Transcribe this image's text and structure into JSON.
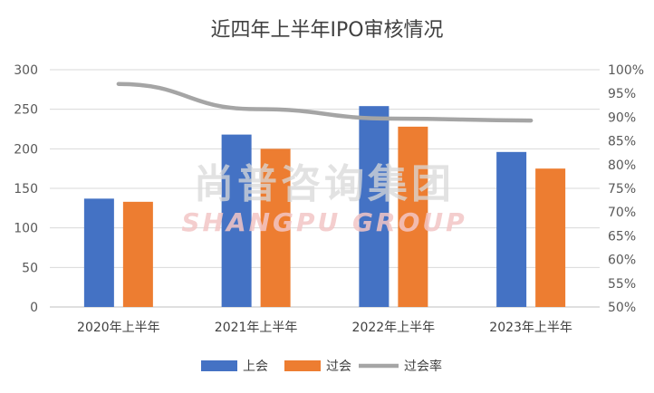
{
  "watermark": {
    "cn": "尚普咨询集团",
    "en": "SHANGPU GROUP"
  },
  "chart_data": {
    "type": "bar",
    "title": "近四年上半年IPO审核情况",
    "categories": [
      "2020年上半年",
      "2021年上半年",
      "2022年上半年",
      "2023年上半年"
    ],
    "series": [
      {
        "name": "上会",
        "type": "bar",
        "axis": "left",
        "color": "#4472C4",
        "values": [
          137,
          218,
          254,
          196
        ]
      },
      {
        "name": "过会",
        "type": "bar",
        "axis": "left",
        "color": "#ED7D31",
        "values": [
          133,
          200,
          228,
          175
        ]
      },
      {
        "name": "过会率",
        "type": "line",
        "axis": "right",
        "color": "#A5A5A5",
        "values": [
          0.97,
          0.917,
          0.897,
          0.893
        ]
      }
    ],
    "y_left": {
      "min": 0,
      "max": 300,
      "ticks": [
        "0",
        "50",
        "100",
        "150",
        "200",
        "250",
        "300"
      ]
    },
    "y_right": {
      "min": 0.5,
      "max": 1.0,
      "ticks": [
        "50%",
        "55%",
        "60%",
        "65%",
        "70%",
        "75%",
        "80%",
        "85%",
        "90%",
        "95%",
        "100%"
      ]
    },
    "grid": true,
    "legend_position": "bottom"
  }
}
